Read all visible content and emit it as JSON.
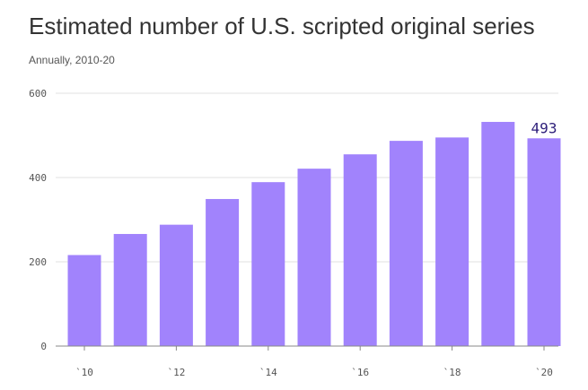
{
  "title": "Estimated number of U.S. scripted original series",
  "subtitle": "Annually, 2010-20",
  "colors": {
    "bar": "#a183fc",
    "grid": "#e2e2e2",
    "axis": "#888888",
    "label": "#2e1f7a"
  },
  "chart_data": {
    "type": "bar",
    "categories": [
      "2010",
      "2011",
      "2012",
      "2013",
      "2014",
      "2015",
      "2016",
      "2017",
      "2018",
      "2019",
      "2020"
    ],
    "values": [
      216,
      266,
      288,
      349,
      389,
      421,
      455,
      487,
      495,
      532,
      493
    ],
    "title": "Estimated number of U.S. scripted original series",
    "subtitle": "Annually, 2010-20",
    "ylim": [
      0,
      600
    ],
    "yticks": [
      "0",
      "200",
      "400",
      "600"
    ],
    "xticks": [
      {
        "category": "2010",
        "label": "`10"
      },
      {
        "category": "2012",
        "label": "`12"
      },
      {
        "category": "2014",
        "label": "`14"
      },
      {
        "category": "2016",
        "label": "`16"
      },
      {
        "category": "2018",
        "label": "`18"
      },
      {
        "category": "2020",
        "label": "`20"
      }
    ],
    "data_labels": [
      {
        "category": "2020",
        "text": "493"
      }
    ],
    "grid": true,
    "legend": "none"
  }
}
